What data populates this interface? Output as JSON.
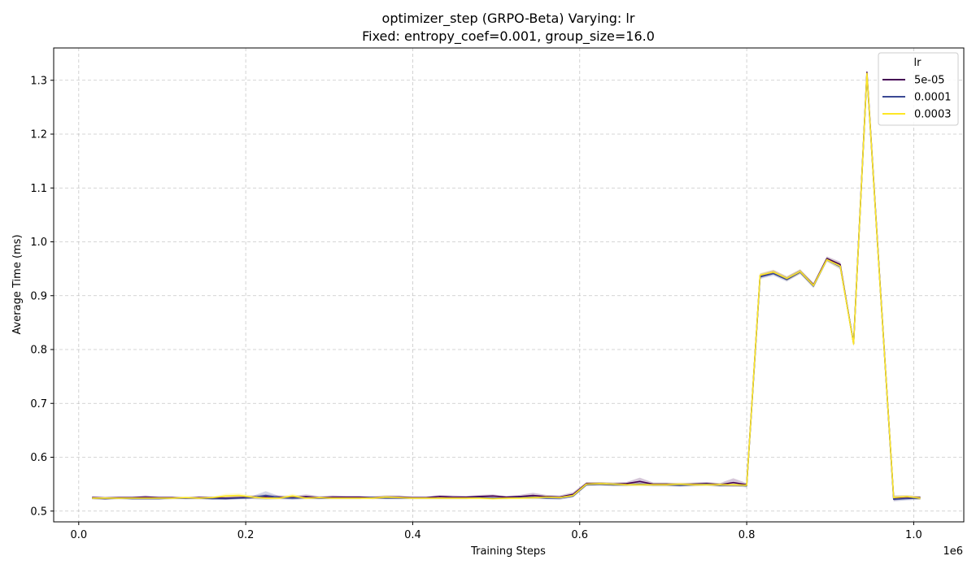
{
  "chart_data": {
    "type": "line",
    "title": "optimizer_step (GRPO-Beta) Varying: lr",
    "subtitle": "Fixed: entropy_coef=0.001, group_size=16.0",
    "xlabel": "Training Steps",
    "ylabel": "Average Time (ms)",
    "x_offset_label": "1e6",
    "xlim": [
      -0.03,
      1.06
    ],
    "ylim": [
      0.48,
      1.36
    ],
    "x_ticks": [
      0.0,
      0.2,
      0.4,
      0.6,
      0.8,
      1.0
    ],
    "x_tick_labels": [
      "0.0",
      "0.2",
      "0.4",
      "0.6",
      "0.8",
      "1.0"
    ],
    "y_ticks": [
      0.5,
      0.6,
      0.7,
      0.8,
      0.9,
      1.0,
      1.1,
      1.2,
      1.3
    ],
    "y_tick_labels": [
      "0.5",
      "0.6",
      "0.7",
      "0.8",
      "0.9",
      "1.0",
      "1.1",
      "1.2",
      "1.3"
    ],
    "grid": true,
    "legend_title": "lr",
    "legend_position": "top-right",
    "x": [
      0.016,
      0.032,
      0.048,
      0.064,
      0.08,
      0.096,
      0.112,
      0.128,
      0.144,
      0.16,
      0.176,
      0.192,
      0.208,
      0.224,
      0.24,
      0.256,
      0.272,
      0.288,
      0.304,
      0.32,
      0.336,
      0.352,
      0.368,
      0.384,
      0.4,
      0.416,
      0.432,
      0.448,
      0.464,
      0.48,
      0.496,
      0.512,
      0.528,
      0.544,
      0.56,
      0.576,
      0.592,
      0.608,
      0.624,
      0.64,
      0.656,
      0.672,
      0.688,
      0.704,
      0.72,
      0.736,
      0.752,
      0.768,
      0.784,
      0.8,
      0.816,
      0.832,
      0.848,
      0.864,
      0.88,
      0.896,
      0.912,
      0.928,
      0.944,
      0.96,
      0.976,
      0.992,
      1.008
    ],
    "series": [
      {
        "name": "5e-05",
        "color": "#440154",
        "values": [
          0.525,
          0.524,
          0.525,
          0.525,
          0.526,
          0.525,
          0.525,
          0.524,
          0.525,
          0.525,
          0.524,
          0.525,
          0.526,
          0.527,
          0.526,
          0.525,
          0.527,
          0.525,
          0.526,
          0.526,
          0.526,
          0.525,
          0.526,
          0.526,
          0.525,
          0.525,
          0.527,
          0.526,
          0.526,
          0.527,
          0.528,
          0.526,
          0.527,
          0.529,
          0.527,
          0.526,
          0.531,
          0.551,
          0.551,
          0.55,
          0.551,
          0.555,
          0.55,
          0.55,
          0.549,
          0.55,
          0.551,
          0.549,
          0.553,
          0.549,
          0.937,
          0.944,
          0.932,
          0.945,
          0.92,
          0.969,
          0.958,
          0.811,
          1.315,
          0.915,
          0.524,
          0.526,
          0.525
        ],
        "band": [
          0.003,
          0.003,
          0.002,
          0.002,
          0.003,
          0.002,
          0.002,
          0.002,
          0.003,
          0.002,
          0.003,
          0.003,
          0.003,
          0.004,
          0.003,
          0.003,
          0.004,
          0.003,
          0.003,
          0.002,
          0.002,
          0.003,
          0.003,
          0.003,
          0.002,
          0.002,
          0.003,
          0.003,
          0.002,
          0.003,
          0.003,
          0.002,
          0.003,
          0.005,
          0.003,
          0.003,
          0.004,
          0.003,
          0.003,
          0.003,
          0.003,
          0.007,
          0.003,
          0.003,
          0.003,
          0.003,
          0.003,
          0.003,
          0.008,
          0.003,
          0.004,
          0.004,
          0.004,
          0.004,
          0.004,
          0.004,
          0.005,
          0.005,
          0.005,
          0.004,
          0.005,
          0.003,
          0.003
        ]
      },
      {
        "name": "0.0001",
        "color": "#3b4994",
        "values": [
          0.524,
          0.523,
          0.524,
          0.523,
          0.523,
          0.523,
          0.524,
          0.524,
          0.524,
          0.523,
          0.523,
          0.524,
          0.525,
          0.529,
          0.525,
          0.524,
          0.525,
          0.524,
          0.524,
          0.524,
          0.524,
          0.525,
          0.524,
          0.524,
          0.524,
          0.524,
          0.524,
          0.524,
          0.524,
          0.525,
          0.524,
          0.524,
          0.525,
          0.526,
          0.524,
          0.524,
          0.528,
          0.549,
          0.55,
          0.549,
          0.549,
          0.55,
          0.549,
          0.549,
          0.548,
          0.549,
          0.55,
          0.548,
          0.549,
          0.547,
          0.935,
          0.941,
          0.93,
          0.944,
          0.918,
          0.967,
          0.954,
          0.812,
          1.311,
          0.914,
          0.522,
          0.523,
          0.524
        ],
        "band": [
          0.002,
          0.002,
          0.002,
          0.002,
          0.002,
          0.002,
          0.002,
          0.002,
          0.002,
          0.002,
          0.002,
          0.002,
          0.003,
          0.008,
          0.003,
          0.003,
          0.003,
          0.002,
          0.002,
          0.002,
          0.002,
          0.002,
          0.002,
          0.002,
          0.002,
          0.002,
          0.002,
          0.002,
          0.002,
          0.002,
          0.002,
          0.002,
          0.002,
          0.004,
          0.002,
          0.003,
          0.003,
          0.003,
          0.003,
          0.003,
          0.003,
          0.003,
          0.003,
          0.003,
          0.003,
          0.003,
          0.003,
          0.003,
          0.003,
          0.003,
          0.004,
          0.004,
          0.004,
          0.004,
          0.004,
          0.004,
          0.005,
          0.005,
          0.005,
          0.004,
          0.004,
          0.003,
          0.003
        ]
      },
      {
        "name": "0.0003",
        "color": "#fde725",
        "values": [
          0.524,
          0.524,
          0.524,
          0.524,
          0.524,
          0.524,
          0.524,
          0.525,
          0.524,
          0.525,
          0.528,
          0.529,
          0.526,
          0.524,
          0.524,
          0.528,
          0.524,
          0.525,
          0.524,
          0.524,
          0.524,
          0.524,
          0.526,
          0.525,
          0.524,
          0.524,
          0.524,
          0.524,
          0.524,
          0.524,
          0.523,
          0.524,
          0.524,
          0.525,
          0.526,
          0.525,
          0.529,
          0.55,
          0.551,
          0.55,
          0.549,
          0.549,
          0.549,
          0.549,
          0.55,
          0.549,
          0.549,
          0.549,
          0.549,
          0.548,
          0.938,
          0.944,
          0.932,
          0.945,
          0.919,
          0.967,
          0.955,
          0.81,
          1.313,
          0.913,
          0.525,
          0.527,
          0.524
        ],
        "band": [
          0.002,
          0.002,
          0.002,
          0.002,
          0.002,
          0.002,
          0.002,
          0.002,
          0.002,
          0.002,
          0.004,
          0.004,
          0.003,
          0.002,
          0.002,
          0.004,
          0.002,
          0.002,
          0.002,
          0.002,
          0.002,
          0.002,
          0.003,
          0.002,
          0.002,
          0.002,
          0.002,
          0.002,
          0.002,
          0.002,
          0.002,
          0.002,
          0.002,
          0.003,
          0.003,
          0.002,
          0.003,
          0.003,
          0.003,
          0.003,
          0.003,
          0.003,
          0.003,
          0.003,
          0.003,
          0.003,
          0.003,
          0.003,
          0.003,
          0.003,
          0.004,
          0.004,
          0.004,
          0.004,
          0.004,
          0.004,
          0.005,
          0.005,
          0.005,
          0.004,
          0.004,
          0.003,
          0.003
        ]
      }
    ]
  }
}
